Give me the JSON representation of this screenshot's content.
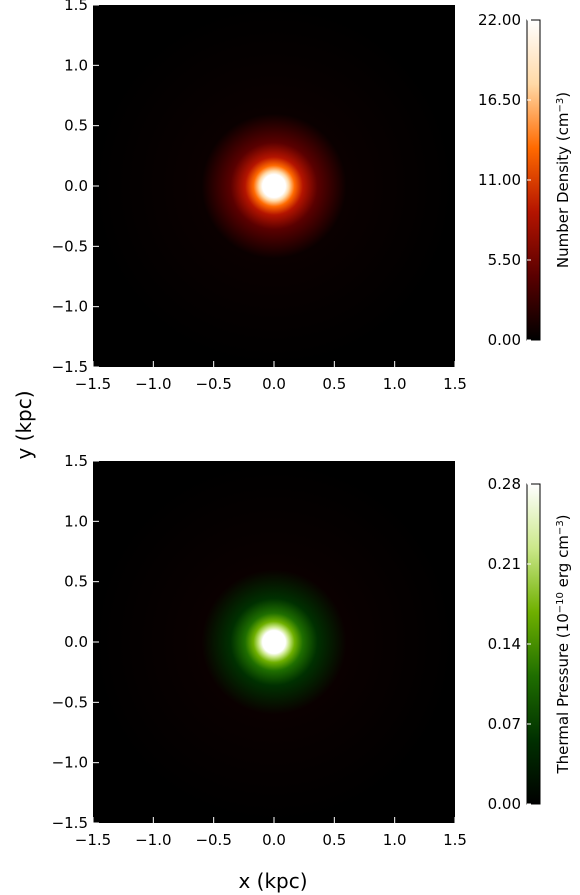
{
  "chart_data": [
    {
      "type": "heatmap",
      "description_of_field": "radially symmetric peak at origin",
      "xlim": [
        -1.5,
        1.5
      ],
      "ylim": [
        -1.5,
        1.5
      ],
      "xticks": [
        "−1.5",
        "−1.0",
        "−0.5",
        "0.0",
        "0.5",
        "1.0",
        "1.5"
      ],
      "yticks": [
        "−1.5",
        "−1.0",
        "−0.5",
        "0.0",
        "0.5",
        "1.0",
        "1.5"
      ],
      "center": [
        0.0,
        0.0
      ],
      "core_radius": 0.1,
      "colormap": "red-temperature",
      "colorbar": {
        "label_prefix": "Number Density (cm",
        "label_sup": "−3",
        "label_suffix": ")",
        "range": [
          0.0,
          22.0
        ],
        "ticks": [
          "0.00",
          "5.50",
          "11.00",
          "16.50",
          "22.00"
        ],
        "tick_values": [
          0.0,
          5.5,
          11.0,
          16.5,
          22.0
        ],
        "colors": [
          "#000000",
          "#5a0000",
          "#b41400",
          "#ff6a00",
          "#ffd9a6",
          "#ffffff"
        ]
      }
    },
    {
      "type": "heatmap",
      "description_of_field": "radially symmetric peak at origin",
      "xlim": [
        -1.5,
        1.5
      ],
      "ylim": [
        -1.5,
        1.5
      ],
      "xticks": [
        "−1.5",
        "−1.0",
        "−0.5",
        "0.0",
        "0.5",
        "1.0",
        "1.5"
      ],
      "yticks": [
        "−1.5",
        "−1.0",
        "−0.5",
        "0.0",
        "0.5",
        "1.0",
        "1.5"
      ],
      "center": [
        0.0,
        0.0
      ],
      "core_radius": 0.1,
      "colormap": "green",
      "colorbar": {
        "label_prefix": "Thermal Pressure (10",
        "label_sup": "−10",
        "label_mid": " erg cm",
        "label_sup2": "−3",
        "label_suffix": ")",
        "range": [
          0.0,
          0.28
        ],
        "ticks": [
          "0.00",
          "0.07",
          "0.14",
          "0.21",
          "0.28"
        ],
        "tick_values": [
          0.0,
          0.07,
          0.14,
          0.21,
          0.28
        ],
        "colors": [
          "#000000",
          "#003000",
          "#1f6e00",
          "#6fb000",
          "#cbe88a",
          "#ffffff"
        ]
      }
    }
  ],
  "xlabel": "x (kpc)",
  "ylabel": "y (kpc)"
}
